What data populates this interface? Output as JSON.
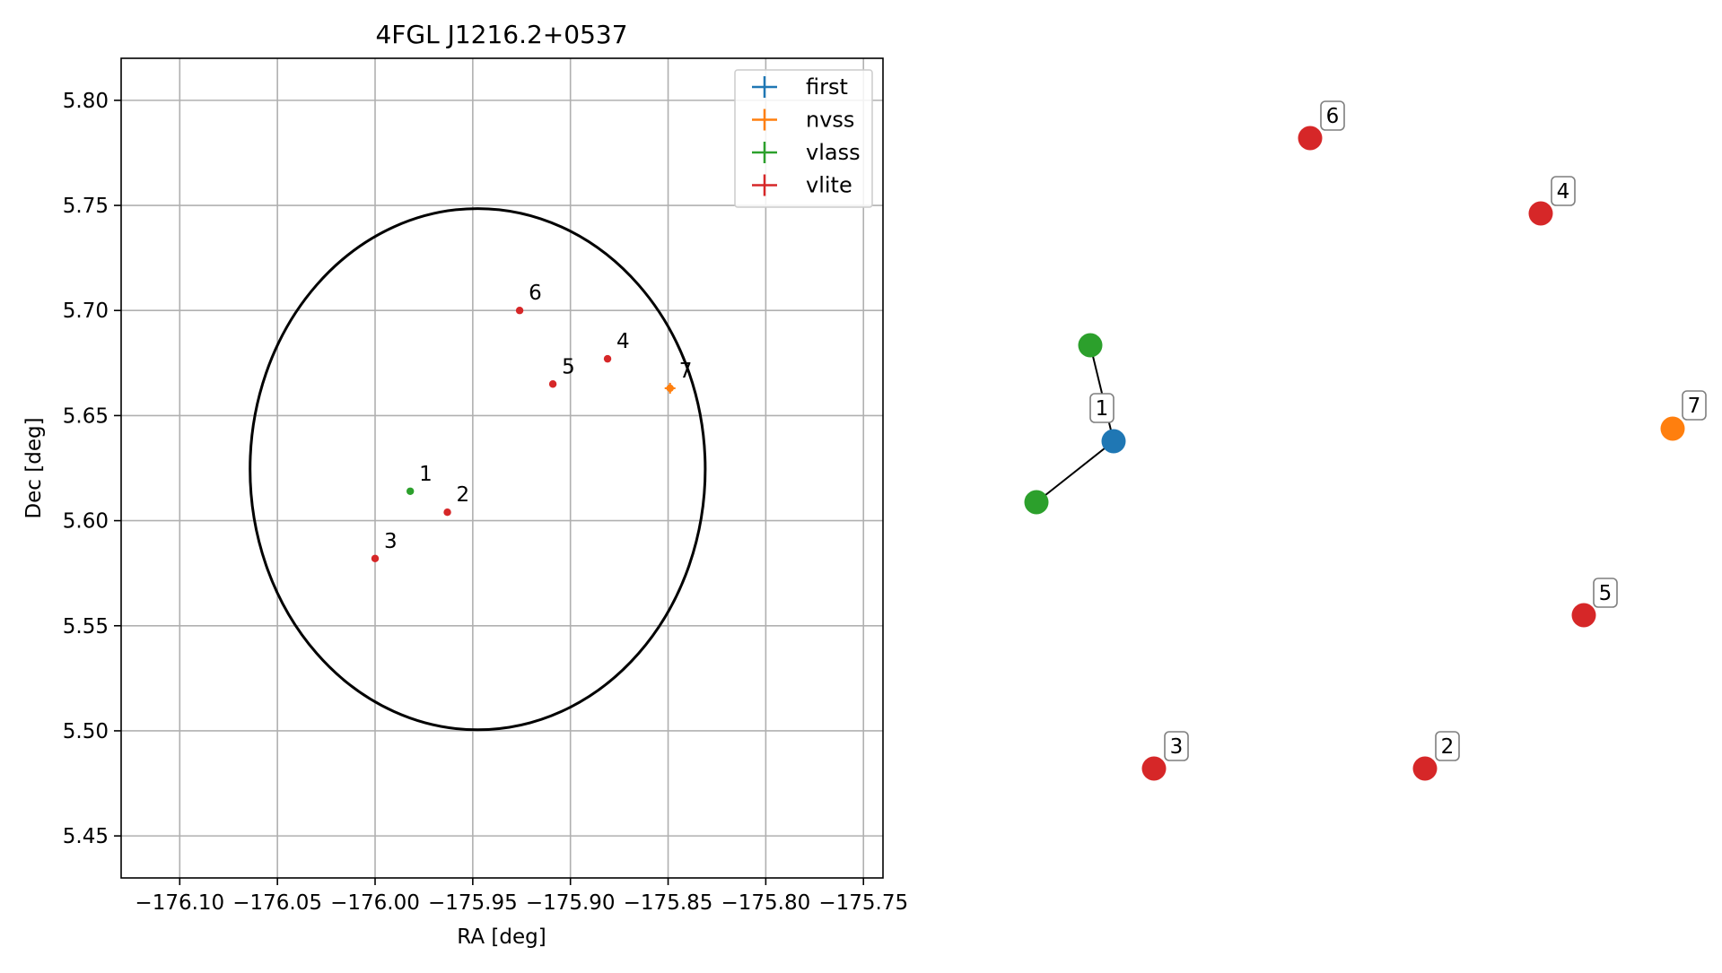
{
  "chart_data": [
    {
      "type": "scatter",
      "title": "4FGL J1216.2+0537",
      "xlabel": "RA [deg]",
      "ylabel": "Dec [deg]",
      "xlim": [
        -176.13,
        -175.74
      ],
      "ylim": [
        5.43,
        5.82
      ],
      "x_ticks": [
        -176.1,
        -176.05,
        -176.0,
        -175.95,
        -175.9,
        -175.85,
        -175.8,
        -175.75
      ],
      "x_tick_labels": [
        "−176.10",
        "−176.05",
        "−176.00",
        "−175.95",
        "−175.90",
        "−175.85",
        "−175.80",
        "−175.75"
      ],
      "y_ticks": [
        5.45,
        5.5,
        5.55,
        5.6,
        5.65,
        5.7,
        5.75,
        5.8
      ],
      "y_tick_labels": [
        "5.45",
        "5.50",
        "5.55",
        "5.60",
        "5.65",
        "5.70",
        "5.75",
        "5.80"
      ],
      "grid": true,
      "legend_position": "top-right",
      "legend": [
        {
          "name": "first",
          "color": "#1f77b4"
        },
        {
          "name": "nvss",
          "color": "#ff7f0e"
        },
        {
          "name": "vlass",
          "color": "#2ca02c"
        },
        {
          "name": "vlite",
          "color": "#d62728"
        }
      ],
      "points": [
        {
          "label": "1",
          "survey": "vlass",
          "x": -175.982,
          "y": 5.614,
          "color": "#2ca02c"
        },
        {
          "label": "2",
          "survey": "vlite",
          "x": -175.963,
          "y": 5.604,
          "color": "#d62728"
        },
        {
          "label": "3",
          "survey": "vlite",
          "x": -176.0,
          "y": 5.582,
          "color": "#d62728"
        },
        {
          "label": "4",
          "survey": "vlite",
          "x": -175.881,
          "y": 5.677,
          "color": "#d62728"
        },
        {
          "label": "5",
          "survey": "vlite",
          "x": -175.909,
          "y": 5.665,
          "color": "#d62728"
        },
        {
          "label": "6",
          "survey": "vlite",
          "x": -175.926,
          "y": 5.7,
          "color": "#d62728"
        },
        {
          "label": "7",
          "survey": "nvss",
          "x": -175.849,
          "y": 5.663,
          "color": "#ff7f0e"
        }
      ],
      "ellipse": {
        "center_x": -175.9475,
        "center_y": 5.6245,
        "semi_axis_x": 0.1165,
        "semi_axis_y": 0.124,
        "color": "#000000"
      }
    },
    {
      "type": "diagram",
      "nodes": [
        {
          "id": "first-1",
          "label": "1",
          "color": "#1f77b4"
        },
        {
          "id": "vlass-a",
          "label": "",
          "color": "#2ca02c"
        },
        {
          "id": "vlass-b",
          "label": "",
          "color": "#2ca02c"
        },
        {
          "id": "vlite-2",
          "label": "2",
          "color": "#d62728"
        },
        {
          "id": "vlite-3",
          "label": "3",
          "color": "#d62728"
        },
        {
          "id": "vlite-4",
          "label": "4",
          "color": "#d62728"
        },
        {
          "id": "vlite-5",
          "label": "5",
          "color": "#d62728"
        },
        {
          "id": "vlite-6",
          "label": "6",
          "color": "#d62728"
        },
        {
          "id": "nvss-7",
          "label": "7",
          "color": "#ff7f0e"
        }
      ],
      "edges": [
        {
          "from": "first-1",
          "to": "vlass-a"
        },
        {
          "from": "first-1",
          "to": "vlass-b"
        }
      ]
    }
  ]
}
